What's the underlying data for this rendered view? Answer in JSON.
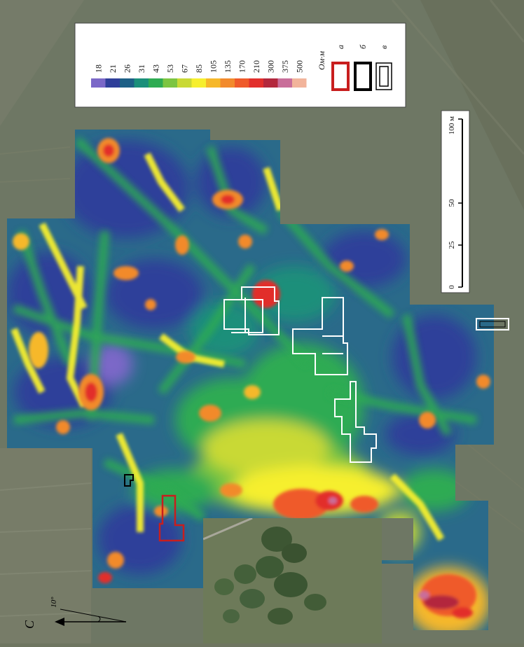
{
  "legend": {
    "unit": "Ом·м",
    "values": [
      "18",
      "21",
      "26",
      "31",
      "43",
      "53",
      "67",
      "85",
      "105",
      "135",
      "170",
      "210",
      "300",
      "375",
      "500"
    ],
    "colors": [
      "#7b68c8",
      "#2f3f9a",
      "#1d5f86",
      "#1a8f7a",
      "#2eab52",
      "#7cc541",
      "#c9d935",
      "#f6ef2e",
      "#f6b82a",
      "#f28a2c",
      "#ef5a2a",
      "#e22f2c",
      "#b3283d",
      "#c96e9a",
      "#f2b49b"
    ],
    "symbol_labels": [
      "а",
      "б",
      "в"
    ],
    "symbol_colors": [
      "#c81e1e",
      "#000000",
      "#ffffff"
    ]
  },
  "scale_bar": {
    "ticks": [
      "0",
      "25",
      "50"
    ],
    "end_label": "100 м"
  },
  "north_arrow": {
    "label": "С",
    "angle_label": "10°"
  }
}
